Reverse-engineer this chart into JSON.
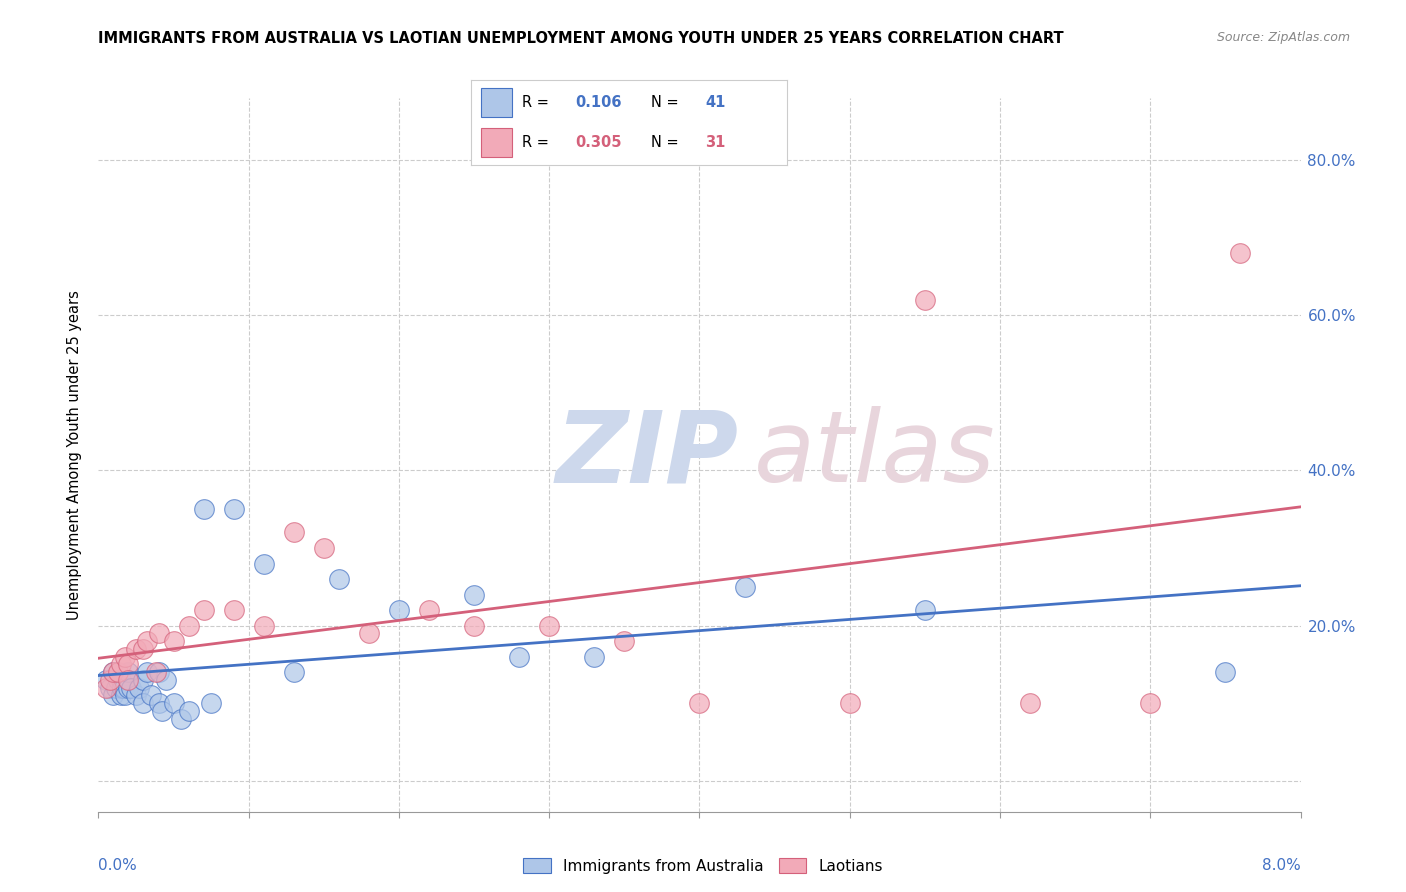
{
  "title": "IMMIGRANTS FROM AUSTRALIA VS LAOTIAN UNEMPLOYMENT AMONG YOUTH UNDER 25 YEARS CORRELATION CHART",
  "source": "Source: ZipAtlas.com",
  "ylabel": "Unemployment Among Youth under 25 years",
  "y_ticks": [
    0.0,
    0.2,
    0.4,
    0.6,
    0.8
  ],
  "y_tick_labels": [
    "",
    "20.0%",
    "40.0%",
    "60.0%",
    "80.0%"
  ],
  "x_range": [
    0.0,
    0.08
  ],
  "y_range": [
    -0.04,
    0.88
  ],
  "color_australia": "#aec6e8",
  "color_laotians": "#f2aab8",
  "trendline_australia": "#4472c4",
  "trendline_laotians": "#d4607a",
  "australia_x": [
    0.0005,
    0.0008,
    0.001,
    0.001,
    0.0012,
    0.0013,
    0.0015,
    0.0015,
    0.0016,
    0.0017,
    0.0018,
    0.002,
    0.002,
    0.002,
    0.0022,
    0.0025,
    0.0027,
    0.003,
    0.003,
    0.0032,
    0.0035,
    0.004,
    0.004,
    0.0042,
    0.0045,
    0.005,
    0.0055,
    0.006,
    0.007,
    0.0075,
    0.009,
    0.011,
    0.013,
    0.016,
    0.02,
    0.025,
    0.028,
    0.033,
    0.043,
    0.055,
    0.075
  ],
  "australia_y": [
    0.13,
    0.12,
    0.14,
    0.11,
    0.12,
    0.13,
    0.13,
    0.11,
    0.12,
    0.12,
    0.11,
    0.13,
    0.12,
    0.14,
    0.12,
    0.11,
    0.12,
    0.13,
    0.1,
    0.14,
    0.11,
    0.1,
    0.14,
    0.09,
    0.13,
    0.1,
    0.08,
    0.09,
    0.35,
    0.1,
    0.35,
    0.28,
    0.14,
    0.26,
    0.22,
    0.24,
    0.16,
    0.16,
    0.25,
    0.22,
    0.14
  ],
  "laotians_x": [
    0.0005,
    0.0008,
    0.001,
    0.0013,
    0.0015,
    0.0018,
    0.002,
    0.002,
    0.0025,
    0.003,
    0.0032,
    0.0038,
    0.004,
    0.005,
    0.006,
    0.007,
    0.009,
    0.011,
    0.013,
    0.015,
    0.018,
    0.022,
    0.025,
    0.03,
    0.035,
    0.04,
    0.05,
    0.055,
    0.062,
    0.07,
    0.076
  ],
  "laotians_y": [
    0.12,
    0.13,
    0.14,
    0.14,
    0.15,
    0.16,
    0.15,
    0.13,
    0.17,
    0.17,
    0.18,
    0.14,
    0.19,
    0.18,
    0.2,
    0.22,
    0.22,
    0.2,
    0.32,
    0.3,
    0.19,
    0.22,
    0.2,
    0.2,
    0.18,
    0.1,
    0.1,
    0.62,
    0.1,
    0.1,
    0.68
  ]
}
